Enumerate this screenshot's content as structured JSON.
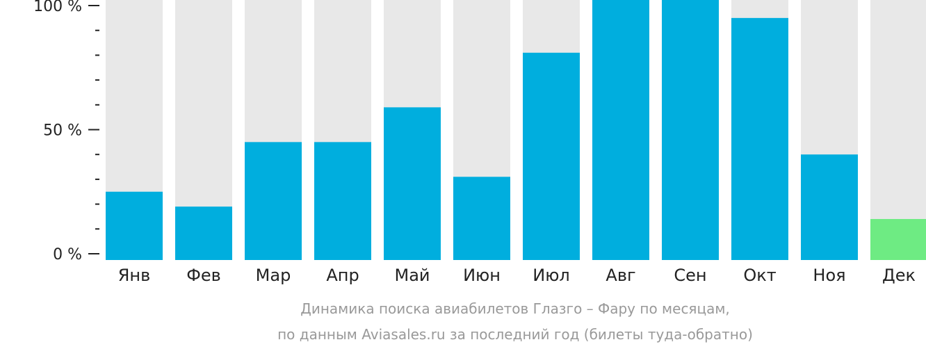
{
  "chart_data": {
    "type": "bar",
    "categories": [
      "Янв",
      "Фев",
      "Мар",
      "Апр",
      "Май",
      "Июн",
      "Июл",
      "Авг",
      "Сен",
      "Окт",
      "Ноя",
      "Дек"
    ],
    "values": [
      25,
      19,
      45,
      45,
      59,
      31,
      81,
      104,
      108,
      95,
      40,
      14
    ],
    "ylim": [
      0,
      100
    ],
    "yticks": [
      {
        "value": 0,
        "label": "0 %"
      },
      {
        "value": 50,
        "label": "50 %"
      },
      {
        "value": 100,
        "label": "100 %"
      }
    ],
    "minor_tick_step": 10,
    "colors": {
      "bar": "#00AEDE",
      "highlight": "#6EEB83",
      "background_bar": "#E8E8E8",
      "axis": "#222222"
    },
    "highlight_categories": [
      "Дек"
    ],
    "caption_line1": "Динамика поиска авиабилетов Глазго – Фару по месяцам,",
    "caption_line2": "по данным Aviasales.ru за последний год (билеты туда-обратно)"
  }
}
